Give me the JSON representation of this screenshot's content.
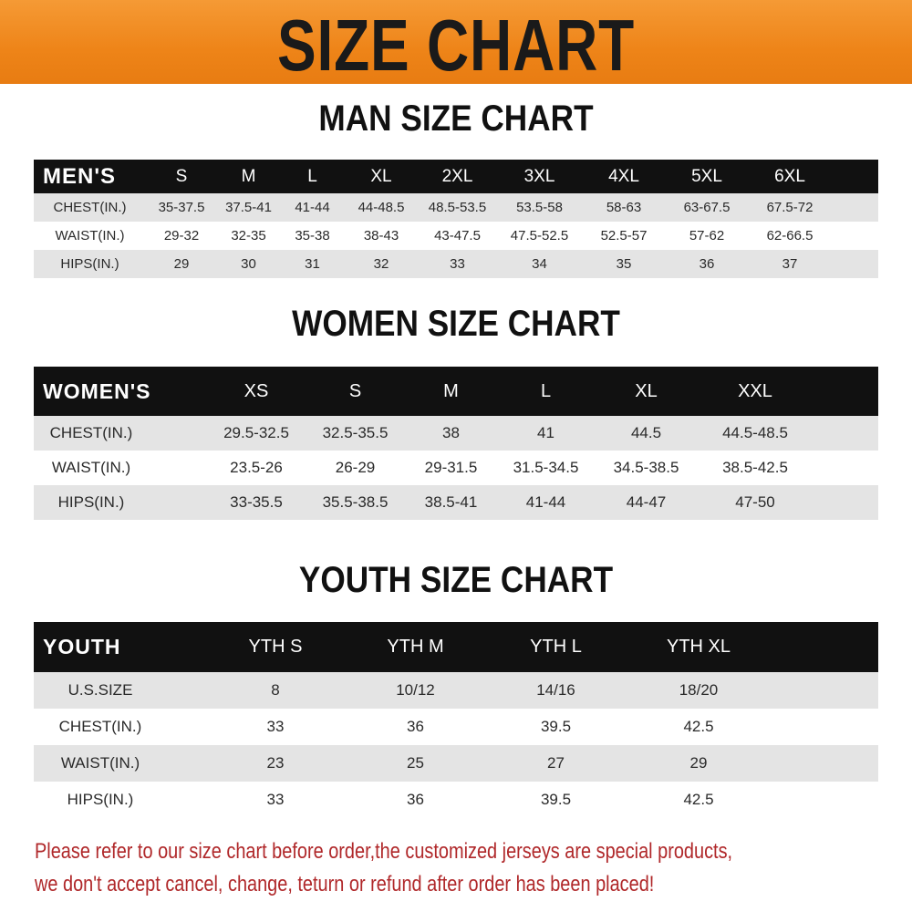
{
  "banner": {
    "title": "SIZE CHART",
    "color": "#ee8418"
  },
  "men": {
    "title": "MAN SIZE CHART",
    "header": [
      "MEN'S",
      "S",
      "M",
      "L",
      "XL",
      "2XL",
      "3XL",
      "4XL",
      "5XL",
      "6XL"
    ],
    "rows": [
      [
        "CHEST(IN.)",
        "35-37.5",
        "37.5-41",
        "41-44",
        "44-48.5",
        "48.5-53.5",
        "53.5-58",
        "58-63",
        "63-67.5",
        "67.5-72"
      ],
      [
        "WAIST(IN.)",
        "29-32",
        "32-35",
        "35-38",
        "38-43",
        "43-47.5",
        "47.5-52.5",
        "52.5-57",
        "57-62",
        "62-66.5"
      ],
      [
        "HIPS(IN.)",
        "29",
        "30",
        "31",
        "32",
        "33",
        "34",
        "35",
        "36",
        "37"
      ]
    ]
  },
  "women": {
    "title": "WOMEN SIZE CHART",
    "header": [
      "WOMEN'S",
      "XS",
      "S",
      "M",
      "L",
      "XL",
      "XXL"
    ],
    "rows": [
      [
        "CHEST(IN.)",
        "29.5-32.5",
        "32.5-35.5",
        "38",
        "41",
        "44.5",
        "44.5-48.5"
      ],
      [
        "WAIST(IN.)",
        "23.5-26",
        "26-29",
        "29-31.5",
        "31.5-34.5",
        "34.5-38.5",
        "38.5-42.5"
      ],
      [
        "HIPS(IN.)",
        "33-35.5",
        "35.5-38.5",
        "38.5-41",
        "41-44",
        "44-47",
        "47-50"
      ]
    ]
  },
  "youth": {
    "title": "YOUTH SIZE CHART",
    "header": [
      "YOUTH",
      "YTH S",
      "YTH M",
      "YTH L",
      "YTH XL"
    ],
    "rows": [
      [
        "U.S.SIZE",
        "8",
        "10/12",
        "14/16",
        "18/20"
      ],
      [
        "CHEST(IN.)",
        "33",
        "36",
        "39.5",
        "42.5"
      ],
      [
        "WAIST(IN.)",
        "23",
        "25",
        "27",
        "29"
      ],
      [
        "HIPS(IN.)",
        "33",
        "36",
        "39.5",
        "42.5"
      ]
    ]
  },
  "notice": {
    "line1": "Please refer to our size chart before order,the customized jerseys are special products,",
    "line2": "we don't accept cancel, change, teturn or refund after order has been placed!",
    "color": "#b0282a"
  }
}
